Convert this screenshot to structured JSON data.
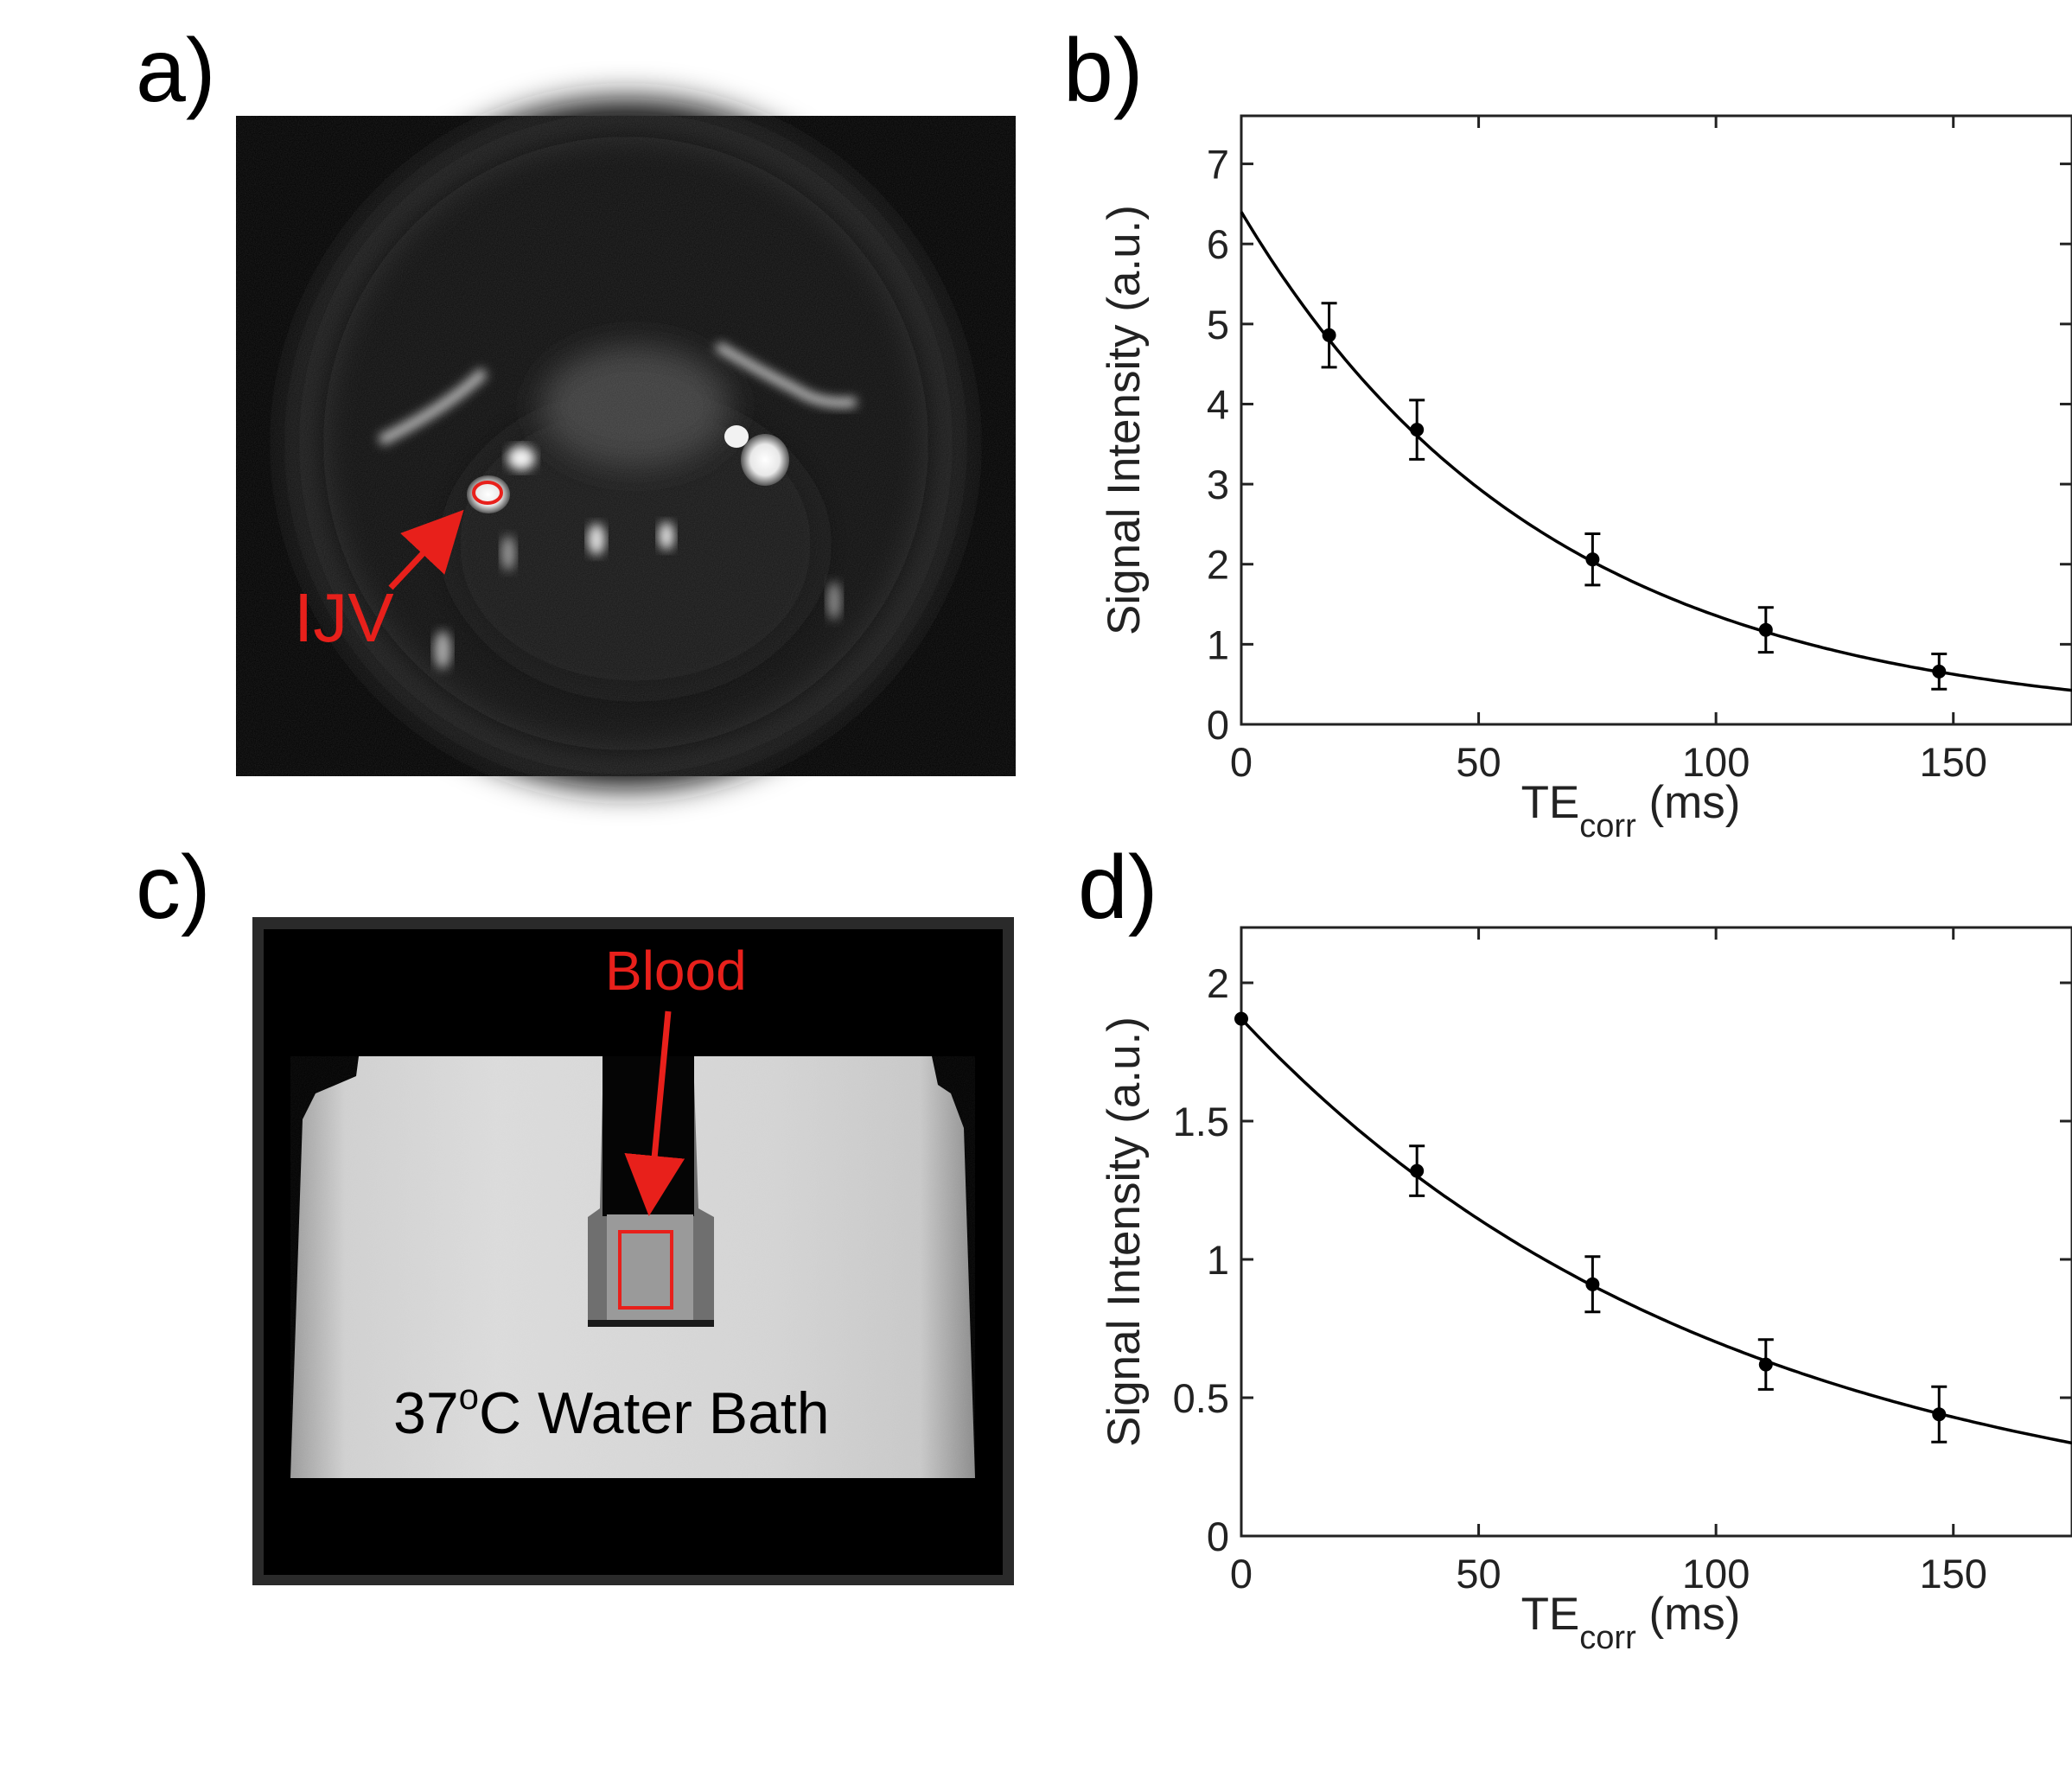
{
  "panels": {
    "a": {
      "label": "a)",
      "annotation": "IJV"
    },
    "b": {
      "label": "b)"
    },
    "c": {
      "label": "c)",
      "annotation_top": "Blood",
      "annotation_bottom_pre": "37",
      "annotation_bottom_sup": "o",
      "annotation_bottom_post": "C Water Bath"
    },
    "d": {
      "label": "d)"
    }
  },
  "colors": {
    "annotation": "#e8201b",
    "curve": "#000000",
    "axis": "#222222"
  },
  "chart_data": [
    {
      "type": "scatter",
      "panel": "b",
      "title": "",
      "xlabel_main": "TE",
      "xlabel_sub": "corr",
      "xlabel_unit": "(ms)",
      "ylabel": "Signal Intensity (a.u.)",
      "xlim": [
        0,
        175
      ],
      "ylim": [
        0,
        7.6
      ],
      "xticks": [
        0,
        50,
        100,
        150
      ],
      "xtick_labels": [
        "0",
        "50",
        "100",
        "150"
      ],
      "yticks": [
        0,
        1,
        2,
        3,
        4,
        5,
        6,
        7
      ],
      "ytick_labels": [
        "0",
        "1",
        "2",
        "3",
        "4",
        "5",
        "6",
        "7"
      ],
      "points": [
        {
          "x": 18.5,
          "y": 4.86,
          "err": 0.4
        },
        {
          "x": 37,
          "y": 3.68,
          "err": 0.37
        },
        {
          "x": 74,
          "y": 2.06,
          "err": 0.32
        },
        {
          "x": 110.5,
          "y": 1.18,
          "err": 0.28
        },
        {
          "x": 147,
          "y": 0.66,
          "err": 0.22
        }
      ],
      "fit": {
        "type": "exponential",
        "a": 6.4,
        "tau": 64.5
      },
      "grid": false,
      "box": true
    },
    {
      "type": "scatter",
      "panel": "d",
      "title": "",
      "xlabel_main": "TE",
      "xlabel_sub": "corr",
      "xlabel_unit": "(ms)",
      "ylabel": "Signal Intensity (a.u.)",
      "xlim": [
        0,
        175
      ],
      "ylim": [
        0,
        2.2
      ],
      "xticks": [
        0,
        50,
        100,
        150
      ],
      "xtick_labels": [
        "0",
        "50",
        "100",
        "150"
      ],
      "yticks": [
        0,
        0.5,
        1,
        1.5,
        2
      ],
      "ytick_labels": [
        "0",
        "0.5",
        "1",
        "1.5",
        "2"
      ],
      "points": [
        {
          "x": 0,
          "y": 1.87,
          "err": 0
        },
        {
          "x": 37,
          "y": 1.32,
          "err": 0.09
        },
        {
          "x": 74,
          "y": 0.91,
          "err": 0.1
        },
        {
          "x": 110.5,
          "y": 0.62,
          "err": 0.09
        },
        {
          "x": 147,
          "y": 0.44,
          "err": 0.1
        }
      ],
      "fit": {
        "type": "exponential",
        "a": 1.87,
        "tau": 102
      },
      "grid": false,
      "box": true
    }
  ]
}
